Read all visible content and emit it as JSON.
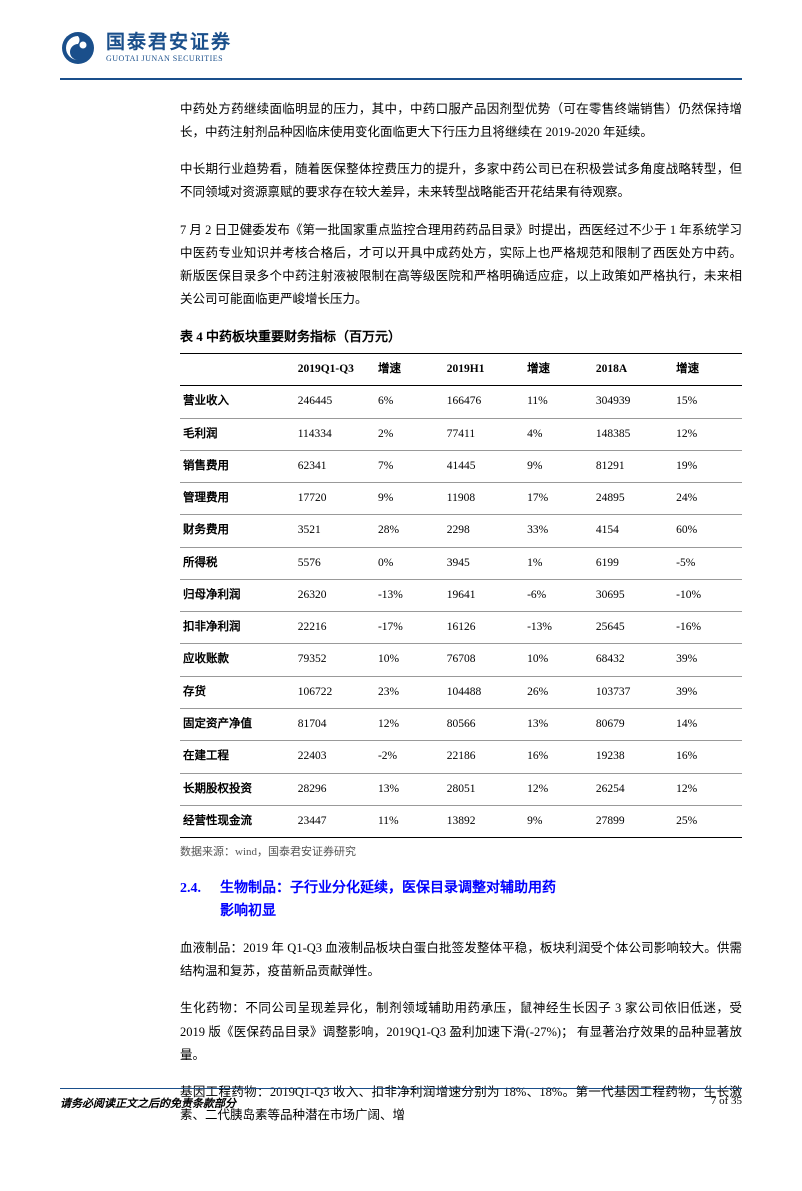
{
  "brand": {
    "cn": "国泰君安证券",
    "en": "GUOTAI JUNAN SECURITIES",
    "logo_outer": "#1a4f8b",
    "logo_inner": "#ffffff"
  },
  "paragraphs": {
    "p1": "中药处方药继续面临明显的压力，其中，中药口服产品因剂型优势（可在零售终端销售）仍然保持增长，中药注射剂品种因临床使用变化面临更大下行压力且将继续在 2019-2020 年延续。",
    "p2": "中长期行业趋势看，随着医保整体控费压力的提升，多家中药公司已在积极尝试多角度战略转型，但不同领域对资源禀赋的要求存在较大差异，未来转型战略能否开花结果有待观察。",
    "p3": "7 月 2 日卫健委发布《第一批国家重点监控合理用药药品目录》时提出，西医经过不少于 1 年系统学习中医药专业知识并考核合格后，才可以开具中成药处方，实际上也严格规范和限制了西医处方中药。新版医保目录多个中药注射液被限制在高等级医院和严格明确适应症，以上政策如严格执行，未来相关公司可能面临更严峻增长压力。"
  },
  "table": {
    "title": "表 4 中药板块重要财务指标（百万元）",
    "columns": [
      "",
      "2019Q1-Q3",
      "增速",
      "2019H1",
      "增速",
      "2018A",
      "增速"
    ],
    "rows": [
      [
        "营业收入",
        "246445",
        "6%",
        "166476",
        "11%",
        "304939",
        "15%"
      ],
      [
        "毛利润",
        "114334",
        "2%",
        "77411",
        "4%",
        "148385",
        "12%"
      ],
      [
        "销售费用",
        "62341",
        "7%",
        "41445",
        "9%",
        "81291",
        "19%"
      ],
      [
        "管理费用",
        "17720",
        "9%",
        "11908",
        "17%",
        "24895",
        "24%"
      ],
      [
        "财务费用",
        "3521",
        "28%",
        "2298",
        "33%",
        "4154",
        "60%"
      ],
      [
        "所得税",
        "5576",
        "0%",
        "3945",
        "1%",
        "6199",
        "-5%"
      ],
      [
        "归母净利润",
        "26320",
        "-13%",
        "19641",
        "-6%",
        "30695",
        "-10%"
      ],
      [
        "扣非净利润",
        "22216",
        "-17%",
        "16126",
        "-13%",
        "25645",
        "-16%"
      ],
      [
        "应收账款",
        "79352",
        "10%",
        "76708",
        "10%",
        "68432",
        "39%"
      ],
      [
        "存货",
        "106722",
        "23%",
        "104488",
        "26%",
        "103737",
        "39%"
      ],
      [
        "固定资产净值",
        "81704",
        "12%",
        "80566",
        "13%",
        "80679",
        "14%"
      ],
      [
        "在建工程",
        "22403",
        "-2%",
        "22186",
        "16%",
        "19238",
        "16%"
      ],
      [
        "长期股权投资",
        "28296",
        "13%",
        "28051",
        "12%",
        "26254",
        "12%"
      ],
      [
        "经营性现金流",
        "23447",
        "11%",
        "13892",
        "9%",
        "27899",
        "25%"
      ]
    ],
    "source": "数据来源：wind，国泰君安证券研究"
  },
  "section": {
    "num": "2.4.",
    "title_l1": "生物制品：子行业分化延续，医保目录调整对辅助用药",
    "title_l2": "影响初显"
  },
  "paragraphs2": {
    "p4": "血液制品：2019 年 Q1-Q3 血液制品板块白蛋白批签发整体平稳，板块利润受个体公司影响较大。供需结构温和复苏，疫苗新品贡献弹性。",
    "p5": "生化药物：不同公司呈现差异化，制剂领域辅助用药承压，鼠神经生长因子 3 家公司依旧低迷，受 2019 版《医保药品目录》调整影响，2019Q1-Q3 盈利加速下滑(-27%)；  有显著治疗效果的品种显著放量。",
    "p6": "基因工程药物：2019Q1-Q3 收入、扣非净利润增速分别为 18%、18%。第一代基因工程药物，生长激素、二代胰岛素等品种潜在市场广阔、增"
  },
  "footer": {
    "left": "请务必阅读正文之后的免责条款部分",
    "right": "7 of 35"
  }
}
